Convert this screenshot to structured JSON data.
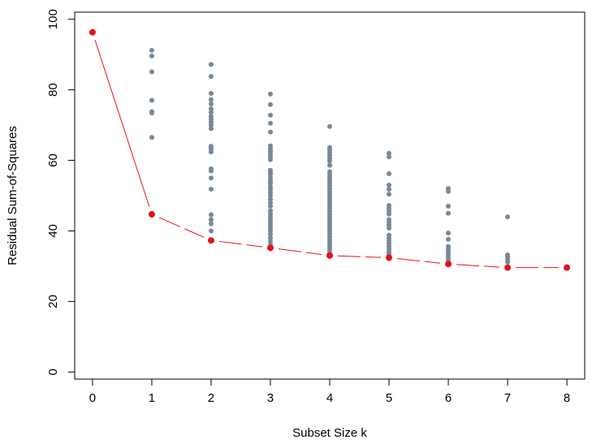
{
  "chart_data": {
    "type": "scatter",
    "xlabel": "Subset Size k",
    "ylabel": "Residual Sum-of-Squares",
    "xlim": [
      -0.3,
      8.3
    ],
    "ylim": [
      -2,
      102
    ],
    "xticks": [
      0,
      1,
      2,
      3,
      4,
      5,
      6,
      7,
      8
    ],
    "yticks": [
      0,
      20,
      40,
      60,
      80,
      100
    ],
    "grid": false,
    "legend": "none",
    "colors": {
      "subsets": "#778899",
      "best": "#e8111a",
      "best_line": "#e8111a"
    },
    "series": [
      {
        "role": "all-subsets",
        "points": [
          {
            "k": 1,
            "rss": [
              91.2,
              89.6,
              85.1,
              77.0,
              73.8,
              73.4,
              66.5,
              44.7
            ]
          },
          {
            "k": 2,
            "rss": [
              87.2,
              83.8,
              79.0,
              77.2,
              76.0,
              74.6,
              73.6,
              72.4,
              71.6,
              70.8,
              70.0,
              69.0,
              64.0,
              63.5,
              63.0,
              62.4,
              57.6,
              57.0,
              55.0,
              51.8,
              44.6,
              43.2,
              42.0,
              40.0,
              37.3
            ]
          },
          {
            "k": 3,
            "rss": [
              78.8,
              75.8,
              72.8,
              70.5,
              68.0,
              64.1,
              63.3,
              62.5,
              61.8,
              61.0,
              60.2,
              57.2,
              56.6,
              56.0,
              55.0,
              54.2,
              53.5,
              52.5,
              51.6,
              50.8,
              50.0,
              49.0,
              48.0,
              47.0,
              45.7,
              44.8,
              44.0,
              43.2,
              42.4,
              41.6,
              40.8,
              40.0,
              39.0,
              38.0,
              37.0,
              36.0,
              35.2
            ]
          },
          {
            "k": 4,
            "rss": [
              69.6,
              63.6,
              63.0,
              62.2,
              61.4,
              60.6,
              59.8,
              58.6,
              56.8,
              56.0,
              55.2,
              54.4,
              53.6,
              52.8,
              52.0,
              51.2,
              50.4,
              49.6,
              48.8,
              48.0,
              47.2,
              46.4,
              45.6,
              44.8,
              44.0,
              43.2,
              42.4,
              41.6,
              40.8,
              40.0,
              39.2,
              38.4,
              37.6,
              36.8,
              36.0,
              35.2,
              34.4,
              33.6,
              33.0
            ]
          },
          {
            "k": 5,
            "rss": [
              62.0,
              61.0,
              56.2,
              53.0,
              51.8,
              50.4,
              47.2,
              46.4,
              45.6,
              44.8,
              43.2,
              42.4,
              41.6,
              40.8,
              38.8,
              38.0,
              37.2,
              36.4,
              35.6,
              34.8,
              34.0,
              33.4,
              32.4
            ]
          },
          {
            "k": 6,
            "rss": [
              52.0,
              51.2,
              47.0,
              45.0,
              39.4,
              37.6,
              35.6,
              34.8,
              34.0,
              33.2,
              32.4,
              31.6,
              30.6
            ]
          },
          {
            "k": 7,
            "rss": [
              44.0,
              33.2,
              32.6,
              31.8,
              31.2,
              29.6
            ]
          },
          {
            "k": 8,
            "rss": []
          }
        ]
      },
      {
        "role": "best-subset",
        "x": [
          0,
          1,
          2,
          3,
          4,
          5,
          6,
          7,
          8
        ],
        "y": [
          96.3,
          44.7,
          37.3,
          35.2,
          33.0,
          32.4,
          30.6,
          29.6,
          29.6
        ]
      }
    ]
  }
}
